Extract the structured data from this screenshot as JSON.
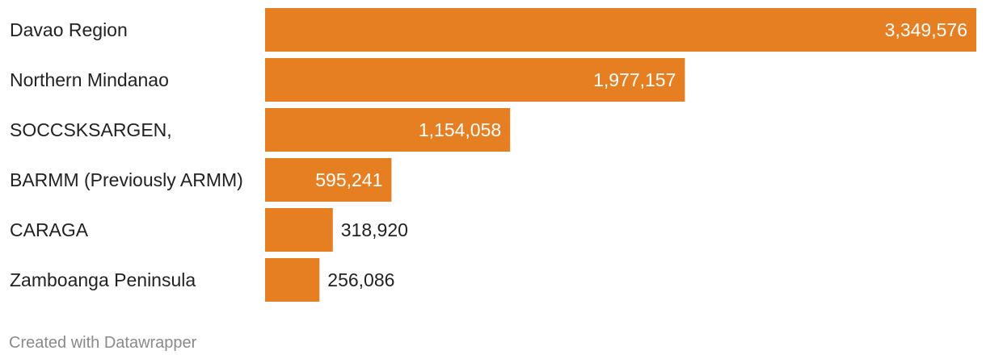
{
  "chart_data": {
    "type": "bar",
    "orientation": "horizontal",
    "categories": [
      "Davao Region",
      "Northern Mindanao",
      "SOCCSKSARGEN,",
      "BARMM (Previously ARMM)",
      "CARAGA",
      "Zamboanga Peninsula"
    ],
    "values": [
      3349576,
      1977157,
      1154058,
      595241,
      318920,
      256086
    ],
    "value_labels": [
      "3,349,576",
      "1,977,157",
      "1,154,058",
      "595,241",
      "318,920",
      "256,086"
    ],
    "bar_color": "#e67e22",
    "label_inside_color": "#ffffff",
    "label_outside_color": "#222222",
    "xlim": [
      0,
      3349576
    ],
    "grid": false,
    "legend": "none"
  },
  "footer": {
    "credit": "Created with Datawrapper"
  }
}
